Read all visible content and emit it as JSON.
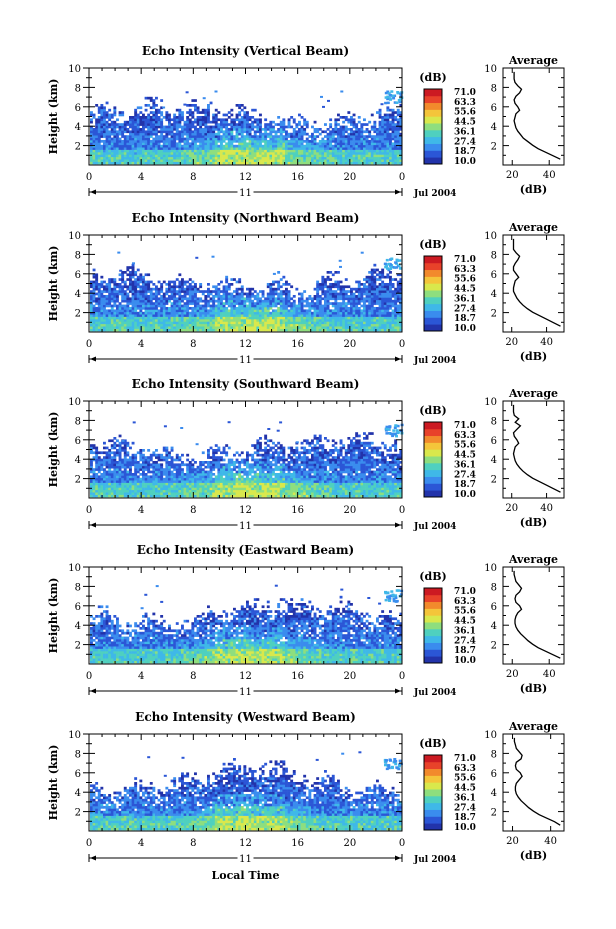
{
  "chart_data": {
    "type": "heatmap",
    "x_ticks": [
      "0",
      "4",
      "8",
      "12",
      "16",
      "20",
      "0"
    ],
    "xlim": [
      0,
      24
    ],
    "day_label": "11",
    "date_label": "Jul 2004",
    "xlabel": "Local Time",
    "ylabel": "Height (km)",
    "ylim": [
      0,
      10
    ],
    "y_ticks": [
      "2",
      "4",
      "6",
      "8",
      "10"
    ],
    "colorbar": {
      "unit": "(dB)",
      "ticks": [
        "71.0",
        "63.3",
        "55.6",
        "44.5",
        "36.1",
        "27.4",
        "18.7",
        "10.0"
      ],
      "colors": [
        "#2233aa",
        "#2b56d6",
        "#3a8cee",
        "#3fb8e8",
        "#4fd0bf",
        "#8ede7e",
        "#d9e84c",
        "#f4c53a",
        "#f28a2c",
        "#e8422a",
        "#cc1a22"
      ]
    },
    "profile_title": "Average",
    "profile_xlabel": "(dB)",
    "panels": [
      {
        "title": "Echo Intensity (Vertical Beam)",
        "profile_xticks": [
          "20",
          "40"
        ],
        "profile_xlim": [
          15,
          48
        ],
        "profile_dB": [
          46,
          42,
          38,
          34,
          31,
          28.5,
          26,
          24.5,
          23,
          22,
          21.5,
          21,
          21.5,
          22,
          24,
          23,
          21.5,
          21,
          22,
          24,
          25,
          23,
          21.5,
          21,
          21,
          21
        ]
      },
      {
        "title": "Echo Intensity (Northward Beam)",
        "profile_xticks": [
          "20",
          "40"
        ],
        "profile_xlim": [
          15,
          50
        ],
        "profile_dB": [
          48,
          44,
          40,
          36,
          32,
          29,
          26.5,
          24.5,
          23,
          22,
          21,
          21,
          21.5,
          22,
          24,
          22.5,
          21,
          21,
          22,
          23.5,
          24.5,
          22.5,
          21,
          21,
          21,
          21
        ]
      },
      {
        "title": "Echo Intensity (Southward Beam)",
        "profile_xticks": [
          "20",
          "40"
        ],
        "profile_xlim": [
          15,
          50
        ],
        "profile_dB": [
          48,
          44,
          40,
          36,
          32,
          29,
          26.5,
          24.5,
          23,
          22,
          21.5,
          21,
          21.5,
          22,
          24,
          23,
          21.5,
          21,
          23,
          25,
          22,
          24,
          21.5,
          21,
          21,
          21
        ]
      },
      {
        "title": "Echo Intensity (Eastward Beam)",
        "profile_xticks": [
          "20",
          "40"
        ],
        "profile_xlim": [
          15,
          48
        ],
        "profile_dB": [
          46,
          42,
          38,
          34,
          31,
          28.5,
          26.5,
          24.5,
          23,
          22,
          21.5,
          21.5,
          22,
          23,
          25,
          24,
          22,
          21.5,
          22,
          24,
          25,
          23.5,
          22,
          21.5,
          21,
          21
        ]
      },
      {
        "title": "Echo Intensity (Westward Beam)",
        "profile_xticks": [
          "20",
          "40"
        ],
        "profile_xlim": [
          15,
          47
        ],
        "profile_dB": [
          45,
          42,
          38,
          34,
          31,
          28.5,
          26.5,
          24.5,
          23,
          22,
          21.5,
          21.5,
          22,
          23.5,
          25,
          24,
          22,
          21.5,
          22,
          24.5,
          25,
          23.5,
          22,
          21.5,
          21,
          21
        ]
      }
    ]
  }
}
